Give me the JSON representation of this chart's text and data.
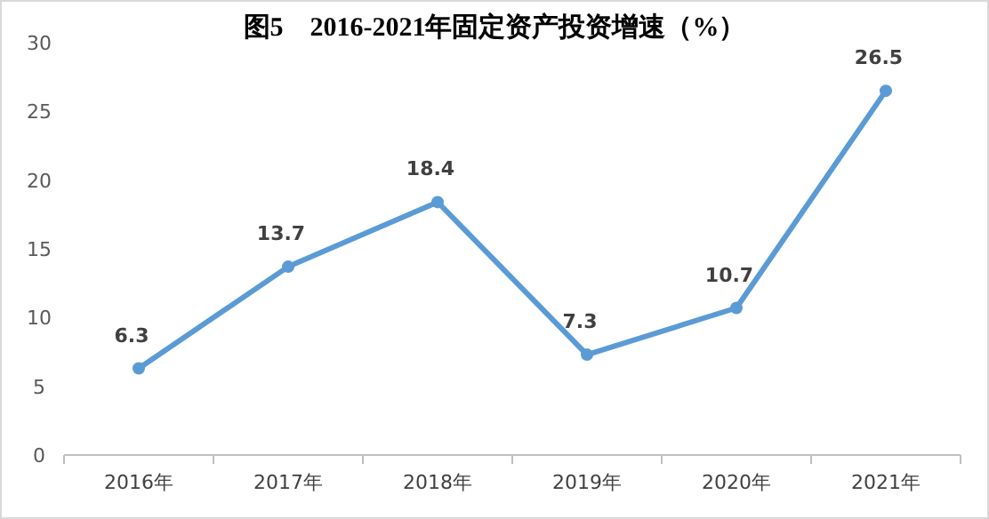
{
  "chart_data": {
    "type": "line",
    "title": "图5　2016-2021年固定资产投资增速（%）",
    "categories": [
      "2016年",
      "2017年",
      "2018年",
      "2019年",
      "2020年",
      "2021年"
    ],
    "series": [
      {
        "color": "#5b9bd5",
        "values": [
          6.3,
          13.7,
          18.4,
          7.3,
          10.7,
          26.5
        ]
      }
    ],
    "ylim": [
      0,
      30
    ],
    "yticks": [
      0,
      5,
      10,
      15,
      20,
      25,
      30
    ],
    "grid": false,
    "marker": "circle",
    "line_style": "solid",
    "data_labels": true
  }
}
